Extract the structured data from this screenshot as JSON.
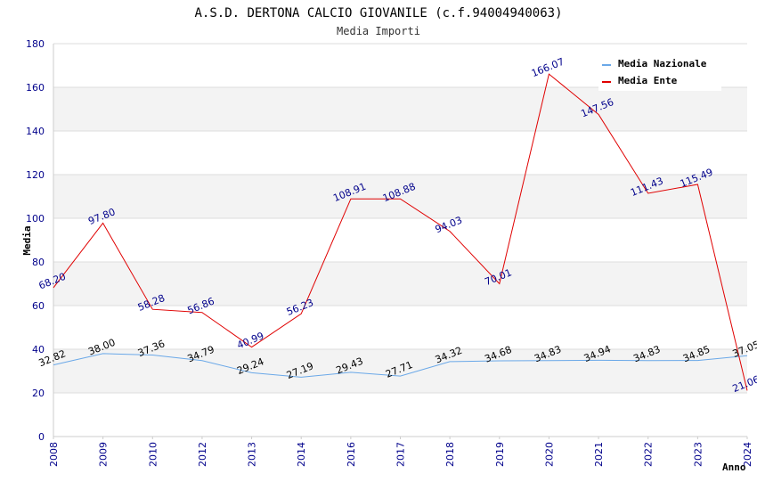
{
  "chart_data": {
    "type": "line",
    "title": "A.S.D. DERTONA CALCIO GIOVANILE (c.f.94004940063)",
    "subtitle": "Media Importi",
    "xlabel": "Anno",
    "ylabel": "Media",
    "ylim": [
      0,
      180
    ],
    "yticks": [
      "0",
      "20",
      "40",
      "60",
      "80",
      "100",
      "120",
      "140",
      "160",
      "180"
    ],
    "categories": [
      "2008",
      "2009",
      "2010",
      "2012",
      "2013",
      "2014",
      "2016",
      "2017",
      "2018",
      "2019",
      "2020",
      "2021",
      "2022",
      "2023",
      "2024"
    ],
    "series": [
      {
        "name": "Media Nazionale",
        "color": "#6aa8e8",
        "label_color": "#000000",
        "values": [
          32.82,
          38.0,
          37.36,
          34.79,
          29.24,
          27.19,
          29.43,
          27.71,
          34.32,
          34.68,
          34.83,
          34.94,
          34.83,
          34.85,
          37.05
        ],
        "labels": [
          "32.82",
          "38.00",
          "37.36",
          "34.79",
          "29.24",
          "27.19",
          "29.43",
          "27.71",
          "34.32",
          "34.68",
          "34.83",
          "34.94",
          "34.83",
          "34.85",
          "37.05"
        ]
      },
      {
        "name": "Media Ente",
        "color": "#e00000",
        "label_color": "#00008b",
        "values": [
          68.2,
          97.8,
          58.28,
          56.86,
          40.99,
          56.23,
          108.91,
          108.88,
          94.03,
          70.01,
          166.07,
          147.56,
          111.43,
          115.49,
          21.06
        ],
        "labels": [
          "68.20",
          "97.80",
          "58.28",
          "56.86",
          "40.99",
          "56.23",
          "108.91",
          "108.88",
          "94.03",
          "70.01",
          "166.07",
          "147.56",
          "111.43",
          "115.49",
          "21.06"
        ]
      }
    ],
    "legend_position": "top-right",
    "grid": true
  }
}
